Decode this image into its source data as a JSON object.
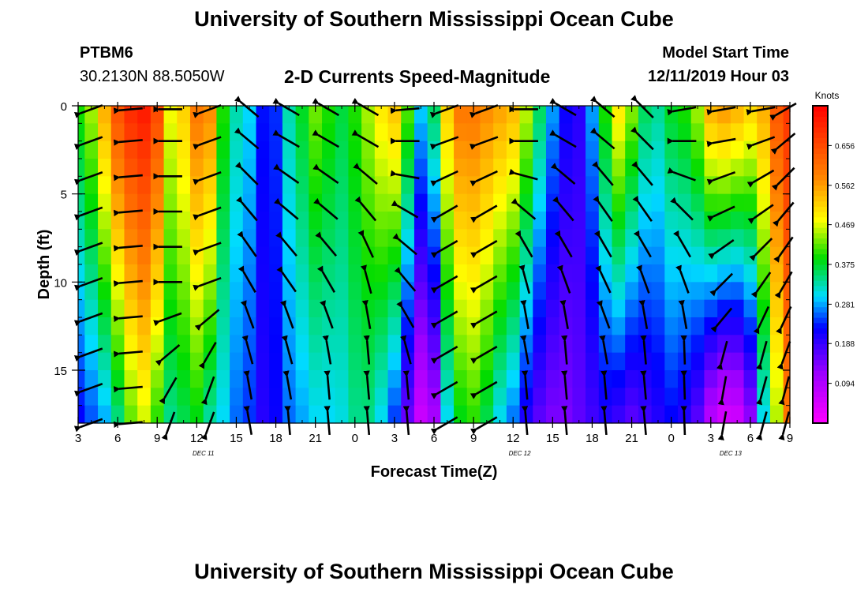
{
  "header": {
    "title": "University of Southern Mississippi Ocean Cube",
    "station_id": "PTBM6",
    "station_location": "30.2130N 88.5050W",
    "plot_title": "2-D Currents Speed-Magnitude",
    "model_start_label": "Model Start Time",
    "model_start_value": "12/11/2019 Hour 03"
  },
  "footer": {
    "title": "University of Southern Mississippi Ocean Cube"
  },
  "chart_data": {
    "type": "heatmap",
    "title": "2-D Currents Speed-Magnitude",
    "xlabel": "Forecast Time(Z)",
    "ylabel": "Depth (ft)",
    "x_hours_range": [
      0,
      54
    ],
    "y_range": [
      0,
      18
    ],
    "y_inverted": true,
    "x_tick_hours": [
      0,
      3,
      6,
      9,
      12,
      15,
      18,
      21,
      24,
      27,
      30,
      33,
      36,
      39,
      42,
      45,
      48,
      51,
      54
    ],
    "x_tick_labels": [
      "3",
      "6",
      "9",
      "12",
      "15",
      "18",
      "21",
      "0",
      "3",
      "6",
      "9",
      "12",
      "15",
      "18",
      "21",
      "0",
      "3",
      "6",
      "9"
    ],
    "y_ticks": [
      0,
      5,
      10,
      15
    ],
    "y_tick_labels": [
      "0",
      "5",
      "10",
      "15"
    ],
    "date_labels": [
      {
        "hour": 9.5,
        "text": "DEC 11"
      },
      {
        "hour": 33.5,
        "text": "DEC 12"
      },
      {
        "hour": 49.5,
        "text": "DEC 13"
      }
    ],
    "colorbar": {
      "label": "Knots",
      "range": [
        0.0,
        0.75
      ],
      "ticks": [
        0.094,
        0.188,
        0.281,
        0.375,
        0.469,
        0.562,
        0.656
      ],
      "tick_labels": [
        "0.094",
        "0.188",
        "0.281",
        "0.375",
        "0.469",
        "0.562",
        "0.656"
      ]
    },
    "speed_columns": {
      "hours": [
        0,
        1,
        2,
        3,
        4,
        5,
        6,
        7,
        8,
        9,
        10,
        11,
        12,
        13,
        14,
        15,
        16,
        17,
        18,
        19,
        20,
        21,
        22,
        23,
        24,
        25,
        26,
        27,
        28,
        29,
        30,
        31,
        32,
        33,
        34,
        35,
        36,
        37,
        38,
        39,
        40,
        41,
        42,
        43,
        44,
        45,
        46,
        47,
        48,
        49,
        50,
        51,
        52,
        53,
        54
      ],
      "surface_knots": [
        0.4,
        0.45,
        0.55,
        0.65,
        0.7,
        0.72,
        0.66,
        0.48,
        0.52,
        0.6,
        0.58,
        0.4,
        0.33,
        0.3,
        0.23,
        0.24,
        0.33,
        0.38,
        0.43,
        0.4,
        0.37,
        0.4,
        0.45,
        0.5,
        0.53,
        0.42,
        0.3,
        0.36,
        0.52,
        0.6,
        0.6,
        0.58,
        0.56,
        0.54,
        0.46,
        0.36,
        0.28,
        0.22,
        0.2,
        0.28,
        0.4,
        0.5,
        0.44,
        0.36,
        0.34,
        0.38,
        0.4,
        0.45,
        0.55,
        0.57,
        0.55,
        0.52,
        0.55,
        0.64,
        0.68
      ],
      "bottom_knots": [
        0.22,
        0.25,
        0.28,
        0.34,
        0.42,
        0.46,
        0.4,
        0.34,
        0.36,
        0.38,
        0.33,
        0.3,
        0.26,
        0.24,
        0.2,
        0.22,
        0.26,
        0.28,
        0.3,
        0.3,
        0.31,
        0.34,
        0.34,
        0.3,
        0.24,
        0.15,
        0.06,
        0.1,
        0.3,
        0.38,
        0.4,
        0.36,
        0.3,
        0.26,
        0.2,
        0.16,
        0.14,
        0.14,
        0.16,
        0.18,
        0.2,
        0.18,
        0.16,
        0.18,
        0.2,
        0.22,
        0.2,
        0.16,
        0.08,
        0.04,
        0.05,
        0.12,
        0.3,
        0.45,
        0.6
      ]
    },
    "arrow_hours": [
      1,
      4,
      7,
      10,
      13,
      16,
      19,
      22,
      25,
      28,
      31,
      34,
      37,
      40,
      43,
      46,
      49,
      52,
      54.5
    ],
    "arrow_depths": [
      0.2,
      2,
      4,
      6,
      8,
      10,
      12,
      14,
      16,
      18
    ],
    "arrow_direction_deg": [
      [
        200,
        200,
        200,
        200,
        200,
        200,
        200,
        200,
        200,
        200
      ],
      [
        185,
        185,
        185,
        185,
        185,
        185,
        185,
        185,
        185,
        185
      ],
      [
        180,
        180,
        180,
        180,
        180,
        180,
        200,
        220,
        240,
        250
      ],
      [
        200,
        200,
        200,
        200,
        200,
        200,
        220,
        240,
        250,
        250
      ],
      [
        140,
        140,
        135,
        130,
        125,
        120,
        110,
        105,
        100,
        100
      ],
      [
        150,
        150,
        145,
        140,
        130,
        125,
        110,
        105,
        100,
        95
      ],
      [
        150,
        150,
        145,
        140,
        130,
        120,
        110,
        100,
        95,
        95
      ],
      [
        150,
        150,
        140,
        130,
        115,
        105,
        100,
        95,
        95,
        95
      ],
      [
        185,
        180,
        170,
        150,
        140,
        130,
        120,
        105,
        95,
        95
      ],
      [
        200,
        200,
        205,
        210,
        210,
        210,
        210,
        210,
        210,
        210
      ],
      [
        200,
        200,
        205,
        210,
        210,
        210,
        210,
        210,
        210,
        210
      ],
      [
        180,
        180,
        165,
        140,
        120,
        105,
        100,
        100,
        95,
        95
      ],
      [
        150,
        150,
        140,
        130,
        120,
        110,
        100,
        95,
        95,
        95
      ],
      [
        140,
        140,
        130,
        125,
        120,
        115,
        110,
        100,
        95,
        95
      ],
      [
        135,
        135,
        130,
        125,
        120,
        110,
        100,
        95,
        95,
        95
      ],
      [
        190,
        180,
        160,
        135,
        120,
        110,
        100,
        92,
        92,
        92
      ],
      [
        190,
        190,
        200,
        205,
        215,
        225,
        230,
        255,
        260,
        260
      ],
      [
        190,
        200,
        210,
        215,
        225,
        235,
        245,
        255,
        255,
        255
      ],
      [
        210,
        220,
        225,
        230,
        235,
        240,
        245,
        250,
        255,
        255
      ]
    ]
  }
}
